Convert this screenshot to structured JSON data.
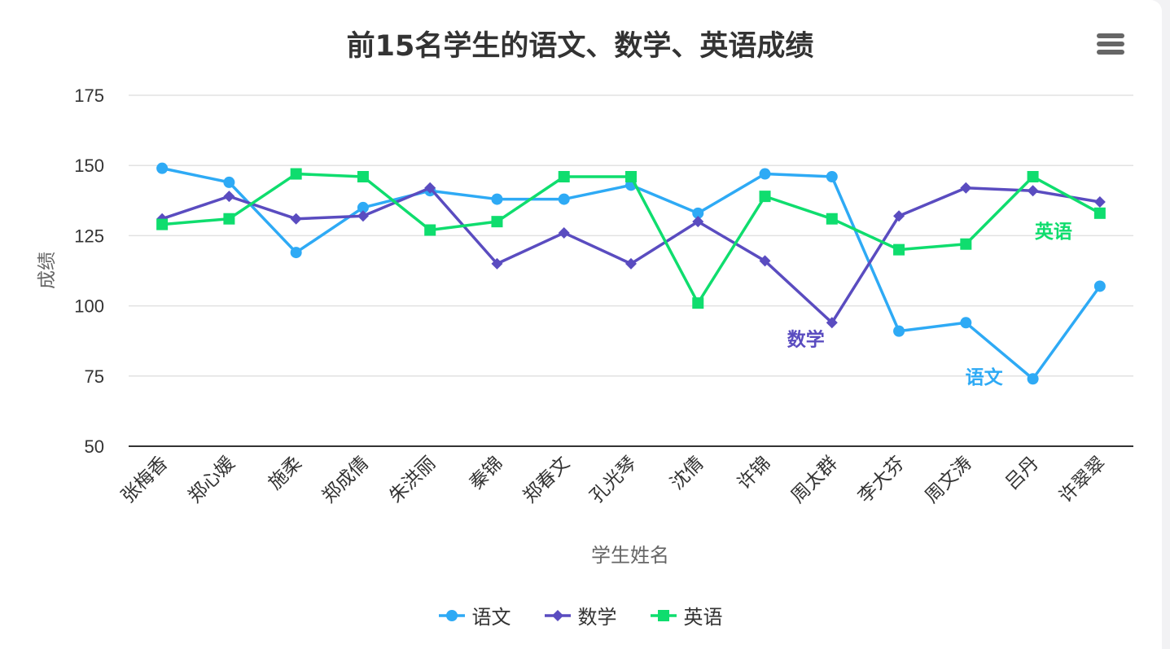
{
  "chart_data": {
    "type": "line",
    "title": "前15名学生的语文、数学、英语成绩",
    "xlabel": "学生姓名",
    "ylabel": "成绩",
    "categories": [
      "张梅香",
      "郑心媛",
      "施柔",
      "郑成倩",
      "朱洪丽",
      "秦锦",
      "郑春文",
      "孔光琴",
      "沈倩",
      "许锦",
      "周太群",
      "李大芬",
      "周文涛",
      "吕丹",
      "许翠翠"
    ],
    "ylim": [
      50,
      175
    ],
    "yticks": [
      50,
      75,
      100,
      125,
      150,
      175
    ],
    "grid": true,
    "legend_position": "bottom-center",
    "series": [
      {
        "name": "语文",
        "color": "#2eaaf5",
        "marker": "circle",
        "values": [
          149,
          144,
          119,
          135,
          141,
          138,
          138,
          143,
          133,
          147,
          146,
          91,
          94,
          74,
          107
        ]
      },
      {
        "name": "数学",
        "color": "#5a4cc0",
        "marker": "diamond",
        "values": [
          131,
          139,
          131,
          132,
          142,
          115,
          126,
          115,
          130,
          116,
          94,
          132,
          142,
          141,
          137
        ]
      },
      {
        "name": "英语",
        "color": "#0fdd6e",
        "marker": "square",
        "values": [
          129,
          131,
          147,
          146,
          127,
          130,
          146,
          146,
          101,
          139,
          131,
          120,
          122,
          146,
          133
        ]
      }
    ],
    "annotations": [
      {
        "text": "数学",
        "series": "数学",
        "near_category": "周太群"
      },
      {
        "text": "语文",
        "series": "语文",
        "near_category": "吕丹"
      },
      {
        "text": "英语",
        "series": "英语",
        "near_category": "许翠翠"
      }
    ]
  }
}
